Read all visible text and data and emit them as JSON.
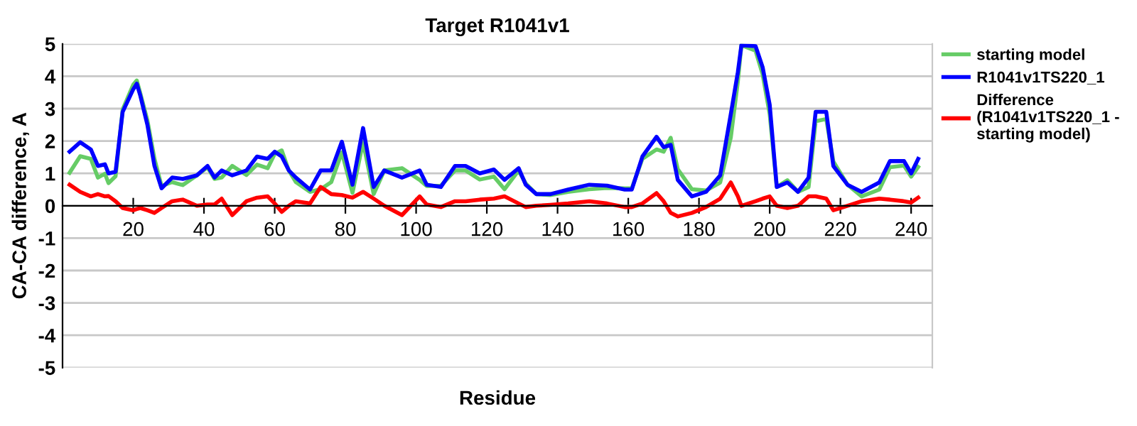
{
  "chart_data": {
    "type": "line",
    "title": "Target R1041v1",
    "xlabel": "Residue",
    "ylabel": "CA-CA difference, A",
    "x": [
      2,
      5,
      8,
      10,
      12,
      13,
      15,
      17,
      20,
      21,
      22,
      24,
      26,
      28,
      31,
      34,
      38,
      41,
      43,
      45,
      48,
      52,
      55,
      58,
      60,
      62,
      64,
      66,
      70,
      73,
      76,
      79,
      82,
      85,
      88,
      91,
      96,
      101,
      103,
      107,
      111,
      114,
      118,
      122,
      125,
      129,
      131,
      134,
      138,
      143,
      149,
      154,
      159,
      161,
      164,
      168,
      170,
      172,
      174,
      178,
      182,
      186,
      189,
      191,
      192,
      196,
      198,
      200,
      202,
      205,
      208,
      211,
      213,
      216,
      218,
      222,
      226,
      231,
      234,
      238,
      240,
      242
    ],
    "series": [
      {
        "name": "starting model",
        "color": "#66cc66",
        "values": [
          1.02,
          1.53,
          1.45,
          0.87,
          0.99,
          0.7,
          0.91,
          2.97,
          3.74,
          3.87,
          3.47,
          2.64,
          1.45,
          0.61,
          0.73,
          0.64,
          0.94,
          1.19,
          0.83,
          0.87,
          1.23,
          0.95,
          1.27,
          1.16,
          1.6,
          1.71,
          1.09,
          0.73,
          0.43,
          0.51,
          0.73,
          1.65,
          0.4,
          1.97,
          0.36,
          1.09,
          1.16,
          0.8,
          0.61,
          0.62,
          1.09,
          1.09,
          0.81,
          0.9,
          0.51,
          1.09,
          0.69,
          0.36,
          0.33,
          0.43,
          0.51,
          0.55,
          0.54,
          0.54,
          1.45,
          1.74,
          1.67,
          2.1,
          1.13,
          0.51,
          0.47,
          0.72,
          2.11,
          3.84,
          4.96,
          4.79,
          4.06,
          2.83,
          0.58,
          0.79,
          0.43,
          0.58,
          2.61,
          2.68,
          1.37,
          0.65,
          0.29,
          0.5,
          1.19,
          1.24,
          0.9,
          1.2
        ]
      },
      {
        "name": "R1041v1TS220_1",
        "color": "#0000ff",
        "values": [
          1.67,
          1.96,
          1.74,
          1.23,
          1.28,
          1.0,
          1.05,
          2.9,
          3.6,
          3.77,
          3.4,
          2.5,
          1.23,
          0.54,
          0.87,
          0.83,
          0.94,
          1.23,
          0.87,
          1.09,
          0.94,
          1.09,
          1.52,
          1.45,
          1.67,
          1.52,
          1.09,
          0.87,
          0.5,
          1.09,
          1.09,
          1.98,
          0.65,
          2.4,
          0.58,
          1.09,
          0.87,
          1.09,
          0.65,
          0.58,
          1.23,
          1.23,
          1.0,
          1.12,
          0.8,
          1.16,
          0.65,
          0.36,
          0.36,
          0.5,
          0.65,
          0.62,
          0.5,
          0.5,
          1.52,
          2.13,
          1.81,
          1.88,
          0.8,
          0.29,
          0.43,
          0.94,
          2.83,
          4.13,
          4.96,
          4.93,
          4.28,
          3.12,
          0.58,
          0.72,
          0.43,
          0.87,
          2.9,
          2.9,
          1.23,
          0.65,
          0.43,
          0.72,
          1.38,
          1.38,
          1.0,
          1.45
        ]
      },
      {
        "name": "Difference\n(R1041v1TS220_1 -\nstarting model)",
        "color": "#ff0000",
        "values": [
          0.65,
          0.43,
          0.29,
          0.36,
          0.29,
          0.3,
          0.14,
          -0.07,
          -0.14,
          -0.1,
          -0.07,
          -0.14,
          -0.22,
          -0.07,
          0.14,
          0.19,
          0,
          0.04,
          0.04,
          0.22,
          -0.29,
          0.14,
          0.25,
          0.29,
          0.07,
          -0.19,
          0,
          0.14,
          0.07,
          0.58,
          0.36,
          0.33,
          0.25,
          0.43,
          0.22,
          0,
          -0.29,
          0.29,
          0.04,
          -0.04,
          0.14,
          0.14,
          0.19,
          0.22,
          0.29,
          0.07,
          -0.04,
          0,
          0.03,
          0.07,
          0.14,
          0.07,
          -0.04,
          -0.04,
          0.07,
          0.39,
          0.14,
          -0.22,
          -0.33,
          -0.22,
          -0.04,
          0.22,
          0.72,
          0.29,
          0,
          0.14,
          0.22,
          0.29,
          0,
          -0.07,
          0,
          0.29,
          0.29,
          0.22,
          -0.14,
          0,
          0.14,
          0.22,
          0.19,
          0.14,
          0.1,
          0.25
        ]
      }
    ],
    "xlim": [
      0,
      246
    ],
    "xticks": [
      20,
      40,
      60,
      80,
      100,
      120,
      140,
      160,
      180,
      200,
      220,
      240
    ],
    "ylim": [
      -5,
      5
    ],
    "yticks": [
      -5,
      -4,
      -3,
      -2,
      -1,
      0,
      1,
      2,
      3,
      4,
      5
    ],
    "grid": "y",
    "legend": "right",
    "marker": "none",
    "line_style": "solid"
  }
}
